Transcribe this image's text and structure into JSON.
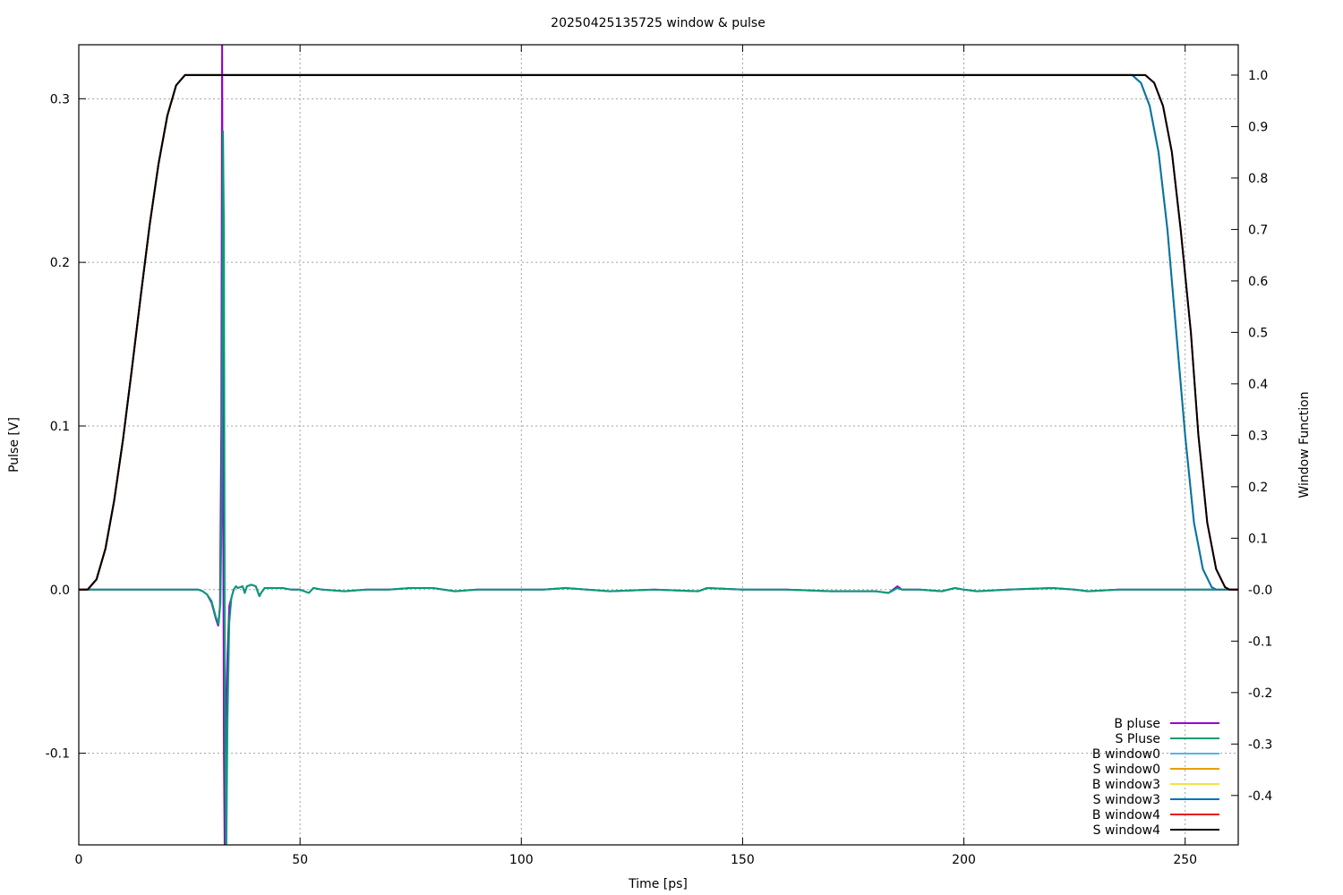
{
  "chart_data": {
    "type": "line",
    "title": "20250425135725 window & pulse",
    "xlabel": "Time [ps]",
    "ylabel": "Pulse [V]",
    "y2label": "Window Function",
    "xlim": [
      0,
      262
    ],
    "ylim": [
      -0.156,
      0.333
    ],
    "y2lim": [
      -0.496,
      1.059
    ],
    "xticks": [
      0,
      50,
      100,
      150,
      200,
      250
    ],
    "yticks": [
      -0.1,
      0.0,
      0.1,
      0.2,
      0.3
    ],
    "ytick_labels": [
      "-0.1",
      "0.0",
      "0.1",
      "0.2",
      "0.3"
    ],
    "y2ticks": [
      -0.4,
      -0.3,
      -0.2,
      -0.1,
      0,
      0.1,
      0.2,
      0.3,
      0.4,
      0.5,
      0.6,
      0.7,
      0.8,
      0.9,
      1.0
    ],
    "y2tick_labels": [
      "-0.4",
      "-0.3",
      "-0.2",
      "-0.1",
      "-0.0",
      "0.1",
      "0.2",
      "0.3",
      "0.4",
      "0.5",
      "0.6",
      "0.7",
      "0.8",
      "0.9",
      "1.0"
    ],
    "grid": true,
    "legend_position": "bottom-right",
    "series": [
      {
        "name": "B pluse",
        "axis": "y1",
        "color": "#9400d3",
        "points": [
          [
            0,
            0
          ],
          [
            27,
            0
          ],
          [
            28,
            -0.001
          ],
          [
            29,
            -0.003
          ],
          [
            30,
            -0.008
          ],
          [
            31,
            -0.018
          ],
          [
            31.5,
            -0.022
          ],
          [
            31.9,
            -0.01
          ],
          [
            32.2,
            0.1
          ],
          [
            32.4,
            0.34
          ],
          [
            32.6,
            0.1
          ],
          [
            32.8,
            -0.1
          ],
          [
            33.0,
            -0.17
          ],
          [
            33.3,
            -0.07
          ],
          [
            33.6,
            -0.04
          ],
          [
            34,
            -0.01
          ],
          [
            34.5,
            -0.005
          ],
          [
            35,
            0
          ],
          [
            35.5,
            0.002
          ],
          [
            36,
            0.001
          ],
          [
            37,
            0.002
          ],
          [
            37.5,
            -0.002
          ],
          [
            38,
            0.002
          ],
          [
            39,
            0.003
          ],
          [
            40,
            0.002
          ],
          [
            40.8,
            -0.004
          ],
          [
            41.2,
            -0.002
          ],
          [
            42,
            0.001
          ],
          [
            44,
            0.001
          ],
          [
            46,
            0.001
          ],
          [
            48,
            0
          ],
          [
            50,
            0
          ],
          [
            52,
            -0.002
          ],
          [
            53,
            0.001
          ],
          [
            55,
            0
          ],
          [
            60,
            -0.001
          ],
          [
            65,
            0
          ],
          [
            70,
            0
          ],
          [
            75,
            0.001
          ],
          [
            80,
            0.001
          ],
          [
            85,
            -0.001
          ],
          [
            90,
            0
          ],
          [
            100,
            0
          ],
          [
            105,
            0
          ],
          [
            110,
            0.001
          ],
          [
            120,
            -0.001
          ],
          [
            130,
            0
          ],
          [
            140,
            -0.001
          ],
          [
            142,
            0.001
          ],
          [
            150,
            0
          ],
          [
            160,
            0
          ],
          [
            170,
            -0.001
          ],
          [
            175,
            -0.001
          ],
          [
            180,
            -0.001
          ],
          [
            183,
            -0.002
          ],
          [
            185,
            0.002
          ],
          [
            186,
            0
          ],
          [
            190,
            0
          ],
          [
            195,
            -0.001
          ],
          [
            198,
            0.001
          ],
          [
            200,
            0
          ],
          [
            203,
            -0.001
          ],
          [
            210,
            0
          ],
          [
            220,
            0.001
          ],
          [
            225,
            0
          ],
          [
            228,
            -0.001
          ],
          [
            235,
            0
          ],
          [
            262,
            0
          ]
        ]
      },
      {
        "name": "S Pluse",
        "axis": "y1",
        "color": "#009e73",
        "points": [
          [
            0,
            0
          ],
          [
            27,
            0
          ],
          [
            28,
            -0.001
          ],
          [
            29,
            -0.003
          ],
          [
            30,
            -0.007
          ],
          [
            31,
            -0.017
          ],
          [
            31.6,
            -0.021
          ],
          [
            32.0,
            -0.008
          ],
          [
            32.3,
            0.05
          ],
          [
            32.6,
            0.28
          ],
          [
            32.8,
            0.22
          ],
          [
            33.0,
            -0.05
          ],
          [
            33.3,
            -0.17
          ],
          [
            33.6,
            -0.08
          ],
          [
            34,
            -0.02
          ],
          [
            34.5,
            -0.005
          ],
          [
            35,
            0
          ],
          [
            35.5,
            0.002
          ],
          [
            36,
            0.001
          ],
          [
            37,
            0.002
          ],
          [
            37.5,
            -0.002
          ],
          [
            38,
            0.002
          ],
          [
            39,
            0.003
          ],
          [
            40,
            0.002
          ],
          [
            40.8,
            -0.004
          ],
          [
            41.2,
            -0.002
          ],
          [
            42,
            0.001
          ],
          [
            44,
            0.001
          ],
          [
            46,
            0.001
          ],
          [
            48,
            0
          ],
          [
            50,
            0
          ],
          [
            52,
            -0.002
          ],
          [
            53,
            0.001
          ],
          [
            55,
            0
          ],
          [
            60,
            -0.001
          ],
          [
            65,
            0
          ],
          [
            70,
            0
          ],
          [
            75,
            0.001
          ],
          [
            80,
            0.001
          ],
          [
            85,
            -0.001
          ],
          [
            90,
            0
          ],
          [
            100,
            0
          ],
          [
            105,
            0
          ],
          [
            110,
            0.001
          ],
          [
            120,
            -0.001
          ],
          [
            130,
            0
          ],
          [
            140,
            -0.001
          ],
          [
            142,
            0.001
          ],
          [
            150,
            0
          ],
          [
            160,
            0
          ],
          [
            170,
            -0.001
          ],
          [
            175,
            -0.001
          ],
          [
            180,
            -0.001
          ],
          [
            183,
            -0.002
          ],
          [
            185,
            0.001
          ],
          [
            186,
            0
          ],
          [
            190,
            0
          ],
          [
            195,
            -0.001
          ],
          [
            198,
            0.001
          ],
          [
            200,
            0
          ],
          [
            203,
            -0.001
          ],
          [
            210,
            0
          ],
          [
            220,
            0.001
          ],
          [
            225,
            0
          ],
          [
            228,
            -0.001
          ],
          [
            235,
            0
          ],
          [
            262,
            0
          ]
        ]
      },
      {
        "name": "B window0",
        "axis": "y2",
        "color": "#56b4e9",
        "points": [
          [
            0,
            0
          ],
          [
            2,
            0
          ],
          [
            4,
            0.02
          ],
          [
            6,
            0.079
          ],
          [
            8,
            0.173
          ],
          [
            10,
            0.292
          ],
          [
            12,
            0.429
          ],
          [
            14,
            0.571
          ],
          [
            16,
            0.708
          ],
          [
            18,
            0.827
          ],
          [
            20,
            0.921
          ],
          [
            22,
            0.98
          ],
          [
            24,
            1
          ],
          [
            238,
            1
          ],
          [
            240,
            0.985
          ],
          [
            242,
            0.94
          ],
          [
            244,
            0.85
          ],
          [
            246,
            0.7
          ],
          [
            248,
            0.5
          ],
          [
            250,
            0.3
          ],
          [
            252,
            0.13
          ],
          [
            254,
            0.04
          ],
          [
            256,
            0.005
          ],
          [
            257,
            0
          ],
          [
            262,
            0
          ]
        ]
      },
      {
        "name": "S window0",
        "axis": "y2",
        "color": "#e69f00",
        "points": [
          [
            0,
            0
          ],
          [
            2,
            0
          ],
          [
            4,
            0.02
          ],
          [
            6,
            0.079
          ],
          [
            8,
            0.173
          ],
          [
            10,
            0.292
          ],
          [
            12,
            0.429
          ],
          [
            14,
            0.571
          ],
          [
            16,
            0.708
          ],
          [
            18,
            0.827
          ],
          [
            20,
            0.921
          ],
          [
            22,
            0.98
          ],
          [
            24,
            1
          ],
          [
            238,
            1
          ],
          [
            240,
            0.985
          ],
          [
            242,
            0.94
          ],
          [
            244,
            0.85
          ],
          [
            246,
            0.7
          ],
          [
            248,
            0.5
          ],
          [
            250,
            0.3
          ],
          [
            252,
            0.13
          ],
          [
            254,
            0.04
          ],
          [
            256,
            0.005
          ],
          [
            257,
            0
          ],
          [
            262,
            0
          ]
        ]
      },
      {
        "name": "B window3",
        "axis": "y2",
        "color": "#f0e442",
        "points": [
          [
            0,
            0
          ],
          [
            2,
            0
          ],
          [
            4,
            0.02
          ],
          [
            6,
            0.079
          ],
          [
            8,
            0.173
          ],
          [
            10,
            0.292
          ],
          [
            12,
            0.429
          ],
          [
            14,
            0.571
          ],
          [
            16,
            0.708
          ],
          [
            18,
            0.827
          ],
          [
            20,
            0.921
          ],
          [
            22,
            0.98
          ],
          [
            24,
            1
          ],
          [
            238,
            1
          ],
          [
            240,
            0.985
          ],
          [
            242,
            0.94
          ],
          [
            244,
            0.85
          ],
          [
            246,
            0.7
          ],
          [
            248,
            0.5
          ],
          [
            250,
            0.3
          ],
          [
            252,
            0.13
          ],
          [
            254,
            0.04
          ],
          [
            256,
            0.005
          ],
          [
            257,
            0
          ],
          [
            262,
            0
          ]
        ]
      },
      {
        "name": "S window3",
        "axis": "y2",
        "color": "#0072b2",
        "points": [
          [
            0,
            0
          ],
          [
            2,
            0
          ],
          [
            4,
            0.02
          ],
          [
            6,
            0.079
          ],
          [
            8,
            0.173
          ],
          [
            10,
            0.292
          ],
          [
            12,
            0.429
          ],
          [
            14,
            0.571
          ],
          [
            16,
            0.708
          ],
          [
            18,
            0.827
          ],
          [
            20,
            0.921
          ],
          [
            22,
            0.98
          ],
          [
            24,
            1
          ],
          [
            238,
            1
          ],
          [
            240,
            0.985
          ],
          [
            242,
            0.94
          ],
          [
            244,
            0.85
          ],
          [
            246,
            0.7
          ],
          [
            248,
            0.5
          ],
          [
            250,
            0.3
          ],
          [
            252,
            0.13
          ],
          [
            254,
            0.04
          ],
          [
            256,
            0.005
          ],
          [
            257,
            0
          ],
          [
            262,
            0
          ]
        ]
      },
      {
        "name": "B window4",
        "axis": "y2",
        "color": "#e51e10",
        "points": [
          [
            0,
            0
          ],
          [
            2,
            0
          ],
          [
            4,
            0.02
          ],
          [
            6,
            0.079
          ],
          [
            8,
            0.173
          ],
          [
            10,
            0.292
          ],
          [
            12,
            0.429
          ],
          [
            14,
            0.571
          ],
          [
            16,
            0.708
          ],
          [
            18,
            0.827
          ],
          [
            20,
            0.921
          ],
          [
            22,
            0.98
          ],
          [
            24,
            1
          ],
          [
            241,
            1
          ],
          [
            243,
            0.985
          ],
          [
            245,
            0.94
          ],
          [
            247,
            0.85
          ],
          [
            249,
            0.7
          ],
          [
            251.3,
            0.5
          ],
          [
            253,
            0.3
          ],
          [
            255,
            0.13
          ],
          [
            257,
            0.04
          ],
          [
            259,
            0.005
          ],
          [
            260,
            0
          ],
          [
            262,
            0
          ]
        ]
      },
      {
        "name": "S window4",
        "axis": "y2",
        "color": "#000000",
        "points": [
          [
            0,
            0
          ],
          [
            2,
            0
          ],
          [
            4,
            0.02
          ],
          [
            6,
            0.079
          ],
          [
            8,
            0.173
          ],
          [
            10,
            0.292
          ],
          [
            12,
            0.429
          ],
          [
            14,
            0.571
          ],
          [
            16,
            0.708
          ],
          [
            18,
            0.827
          ],
          [
            20,
            0.921
          ],
          [
            22,
            0.98
          ],
          [
            24,
            1
          ],
          [
            241,
            1
          ],
          [
            243,
            0.985
          ],
          [
            245,
            0.94
          ],
          [
            247,
            0.85
          ],
          [
            249,
            0.7
          ],
          [
            251.3,
            0.5
          ],
          [
            253,
            0.3
          ],
          [
            255,
            0.13
          ],
          [
            257,
            0.04
          ],
          [
            259,
            0.005
          ],
          [
            260,
            0
          ],
          [
            262,
            0
          ]
        ]
      }
    ]
  }
}
